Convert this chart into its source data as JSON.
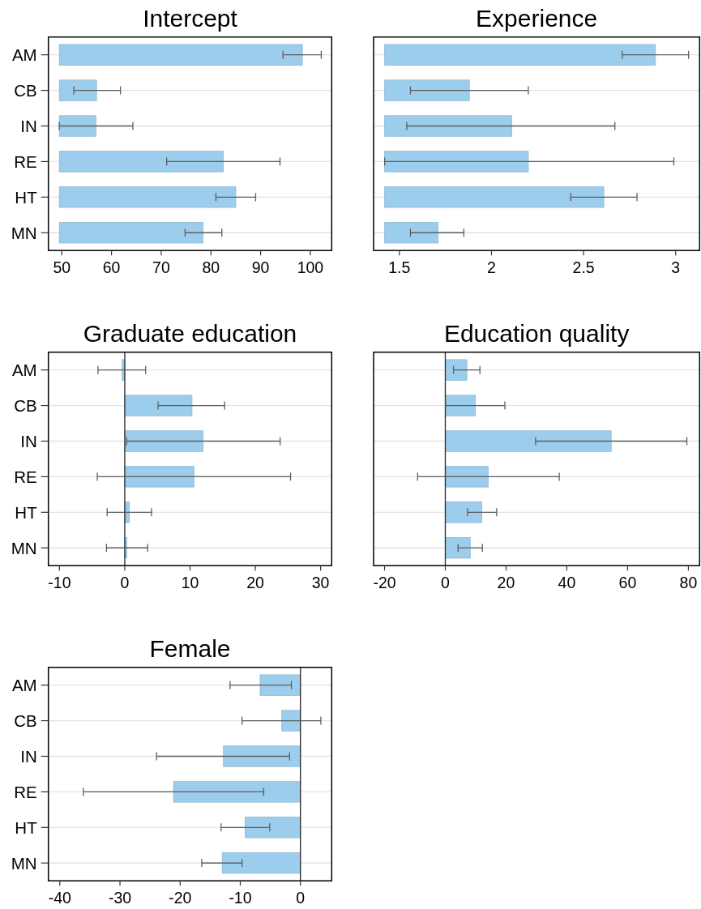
{
  "chart_data": [
    {
      "type": "bar",
      "orientation": "horizontal",
      "title": "Intercept",
      "categories": [
        "AM",
        "CB",
        "IN",
        "RE",
        "HT",
        "MN"
      ],
      "base": [
        49.5,
        49.5,
        49.5,
        49.5,
        49.5,
        49.5
      ],
      "values": [
        48.9,
        7.5,
        7.4,
        33.0,
        35.5,
        28.9
      ],
      "errors": [
        [
          94.5,
          102.2
        ],
        [
          52.4,
          61.8
        ],
        [
          49.5,
          64.3
        ],
        [
          71.1,
          93.9
        ],
        [
          81.0,
          89.0
        ],
        [
          74.8,
          82.2
        ]
      ],
      "color": "#9dcdec",
      "xlim": [
        47.3,
        104.3
      ],
      "xticks": [
        50,
        60,
        70,
        80,
        90,
        100
      ],
      "grid": "y"
    },
    {
      "type": "bar",
      "orientation": "horizontal",
      "title": "Experience",
      "categories": [
        null,
        null,
        null,
        null,
        null,
        null
      ],
      "base": [
        1.42,
        1.42,
        1.42,
        1.42,
        1.42,
        1.42
      ],
      "values": [
        1.47,
        0.46,
        0.69,
        0.78,
        1.19,
        0.29
      ],
      "errors": [
        [
          2.71,
          3.07
        ],
        [
          1.56,
          2.2
        ],
        [
          1.54,
          2.67
        ],
        [
          1.42,
          2.99
        ],
        [
          2.43,
          2.79
        ],
        [
          1.56,
          1.85
        ]
      ],
      "color": "#9dcdec",
      "xlim": [
        1.36,
        3.13
      ],
      "xticks": [
        1.5,
        2,
        2.5,
        3
      ],
      "grid": "y",
      "tick_labels": "x"
    },
    {
      "type": "bar",
      "orientation": "horizontal",
      "title": "Graduate education",
      "categories": [
        "AM",
        "CB",
        "IN",
        "RE",
        "HT",
        "MN"
      ],
      "values": [
        -0.4,
        10.3,
        12.0,
        10.6,
        0.7,
        0.3
      ],
      "errors": [
        [
          -4.1,
          3.2
        ],
        [
          5.1,
          15.3
        ],
        [
          0.3,
          23.8
        ],
        [
          -4.2,
          25.4
        ],
        [
          -2.7,
          4.1
        ],
        [
          -2.8,
          3.5
        ]
      ],
      "color": "#9dcdec",
      "xlim": [
        -11.7,
        31.7
      ],
      "xticks": [
        -10,
        0,
        10,
        20,
        30
      ],
      "grid": "y",
      "ref_lines": [
        {
          "axis": "x",
          "value": 0,
          "color": "#333333"
        }
      ]
    },
    {
      "type": "bar",
      "orientation": "horizontal",
      "title": "Education quality",
      "categories": [
        null,
        null,
        null,
        null,
        null,
        null
      ],
      "values": [
        7.1,
        9.9,
        54.6,
        14.1,
        12.0,
        8.2
      ],
      "errors": [
        [
          2.7,
          11.4
        ],
        [
          0.1,
          19.6
        ],
        [
          29.7,
          79.5
        ],
        [
          -9.1,
          37.5
        ],
        [
          7.3,
          16.9
        ],
        [
          4.2,
          12.2
        ]
      ],
      "color": "#9dcdec",
      "xlim": [
        -23.6,
        83.7
      ],
      "xticks": [
        -20,
        0,
        20,
        40,
        60,
        80
      ],
      "grid": "y",
      "tick_labels": "x",
      "ref_lines": [
        {
          "axis": "x",
          "value": 0,
          "color": "#333333"
        }
      ]
    },
    {
      "type": "bar",
      "orientation": "horizontal",
      "title": "Female",
      "categories": [
        "AM",
        "CB",
        "IN",
        "RE",
        "HT",
        "MN"
      ],
      "values": [
        -6.7,
        -3.1,
        -12.8,
        -21.1,
        -9.2,
        -13.0
      ],
      "errors": [
        [
          -11.7,
          -1.5
        ],
        [
          -9.7,
          3.4
        ],
        [
          -23.9,
          -1.8
        ],
        [
          -36.1,
          -6.1
        ],
        [
          -13.2,
          -5.1
        ],
        [
          -16.4,
          -9.7
        ]
      ],
      "color": "#9dcdec",
      "xlim": [
        -41.9,
        5.2
      ],
      "xticks": [
        -40,
        -30,
        -20,
        -10,
        0
      ],
      "grid": "y",
      "ref_lines": [
        {
          "axis": "x",
          "value": 0,
          "color": "#333333"
        }
      ]
    }
  ]
}
